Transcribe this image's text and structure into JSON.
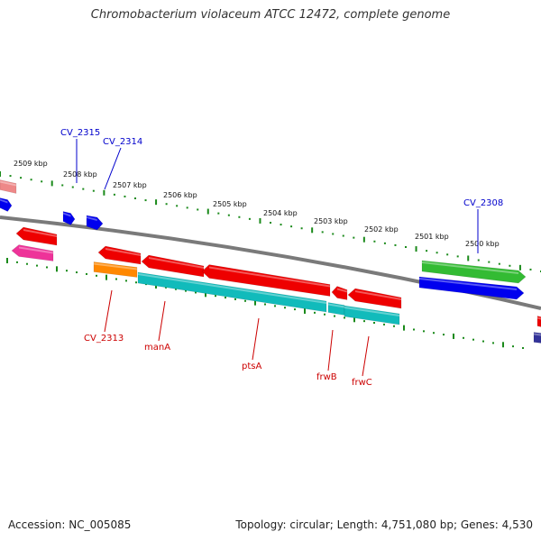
{
  "title": "Chromobacterium violaceum ATCC 12472, complete genome",
  "footer": {
    "accession": "Accession: NC_005085",
    "topology": "Topology: circular; Length: 4,751,080 bp; Genes: 4,530"
  },
  "scale_labels": [
    "2509 kbp",
    "2508 kbp",
    "2507 kbp",
    "2506 kbp",
    "2505 kbp",
    "2504 kbp",
    "2503 kbp",
    "2502 kbp",
    "2501 kbp",
    "2500 kbp"
  ],
  "gene_labels": {
    "top": [
      "CV_2315",
      "CV_2314",
      "CV_2308"
    ],
    "bottom": [
      "CV_2313",
      "manA",
      "ptsA",
      "frwB",
      "frwC"
    ]
  },
  "colors": {
    "backbone": "#7a7a7a",
    "ticks": "#1a8a1a",
    "label_top": "#0000cc",
    "label_bottom": "#cc0000",
    "red": "#ee0000",
    "pink": "#ee3399",
    "salmon": "#ee8888",
    "blue": "#0000ee",
    "green": "#33bb33",
    "orange": "#ff8800",
    "cyan": "#11bbbb",
    "purple": "#333399"
  }
}
